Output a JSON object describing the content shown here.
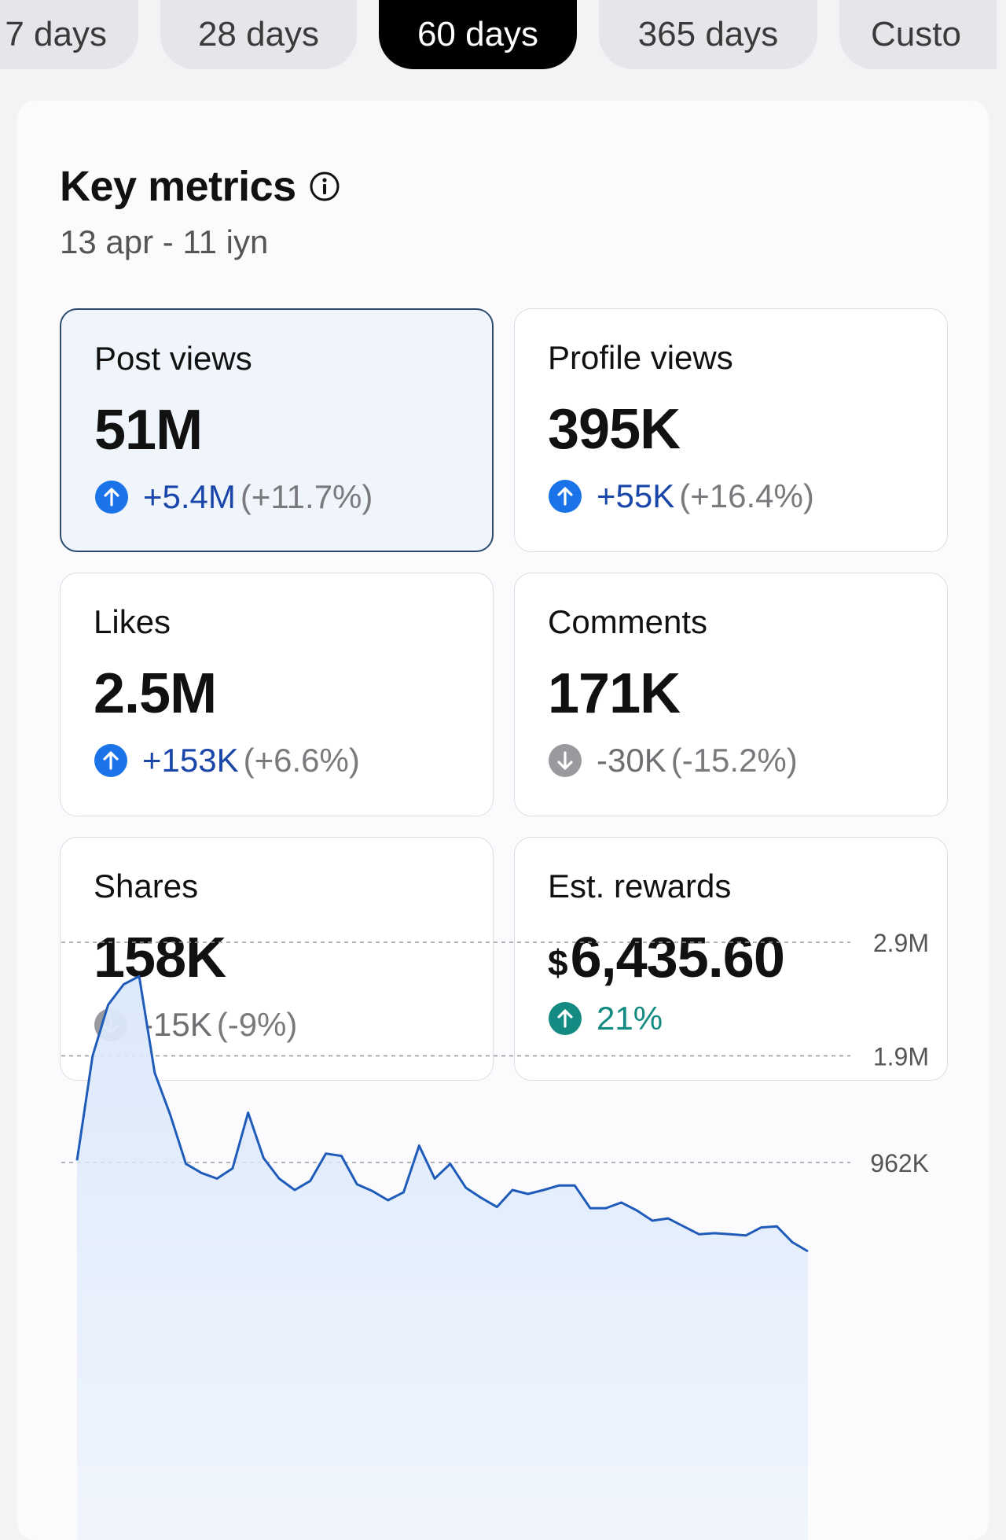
{
  "tabs": [
    {
      "label": "7 days",
      "active": false
    },
    {
      "label": "28 days",
      "active": false
    },
    {
      "label": "60 days",
      "active": true
    },
    {
      "label": "365 days",
      "active": false
    },
    {
      "label": "Custo",
      "active": false
    }
  ],
  "section": {
    "title": "Key metrics",
    "info_icon": "info-icon",
    "date_range": "13 apr - 11 iyn"
  },
  "metrics": [
    {
      "label": "Post views",
      "value": "51M",
      "delta": "+5.4M",
      "pct": "(+11.7%)",
      "direction": "up",
      "selected": true
    },
    {
      "label": "Profile views",
      "value": "395K",
      "delta": "+55K",
      "pct": "(+16.4%)",
      "direction": "up",
      "selected": false
    },
    {
      "label": "Likes",
      "value": "2.5M",
      "delta": "+153K",
      "pct": "(+6.6%)",
      "direction": "up",
      "selected": false
    },
    {
      "label": "Comments",
      "value": "171K",
      "delta": "-30K",
      "pct": "(-15.2%)",
      "direction": "down",
      "selected": false
    },
    {
      "label": "Shares",
      "value": "158K",
      "delta": "-15K",
      "pct": "(-9%)",
      "direction": "down",
      "selected": false
    },
    {
      "label": "Est. rewards",
      "currency": "$",
      "value": "6,435.60",
      "delta": "21%",
      "pct": "",
      "direction": "up-green",
      "selected": false
    }
  ],
  "colors": {
    "up": "#1a73e8",
    "down": "#9a9a9e",
    "green": "#138a82",
    "line": "#1f5bb8",
    "fill": "#dce9fb"
  },
  "chart_data": {
    "type": "area",
    "title": "",
    "xlabel": "",
    "ylabel": "",
    "y_ticks": [
      {
        "label": "2.9M",
        "value": 2900000
      },
      {
        "label": "1.9M",
        "value": 1900000
      },
      {
        "label": "962K",
        "value": 962000
      }
    ],
    "ylim": [
      0,
      2900000
    ],
    "grid": true,
    "series": [
      {
        "values": [
          980000,
          1900000,
          2350000,
          2530000,
          2600000,
          1750000,
          1380000,
          950000,
          870000,
          820000,
          910000,
          1400000,
          1000000,
          820000,
          720000,
          800000,
          1040000,
          1020000,
          770000,
          710000,
          630000,
          700000,
          1110000,
          820000,
          950000,
          740000,
          650000,
          570000,
          720000,
          685000,
          720000,
          760000,
          760000,
          560000,
          560000,
          610000,
          540000,
          450000,
          470000,
          400000,
          330000,
          340000,
          330000,
          320000,
          390000,
          400000,
          260000,
          180000
        ]
      }
    ]
  }
}
